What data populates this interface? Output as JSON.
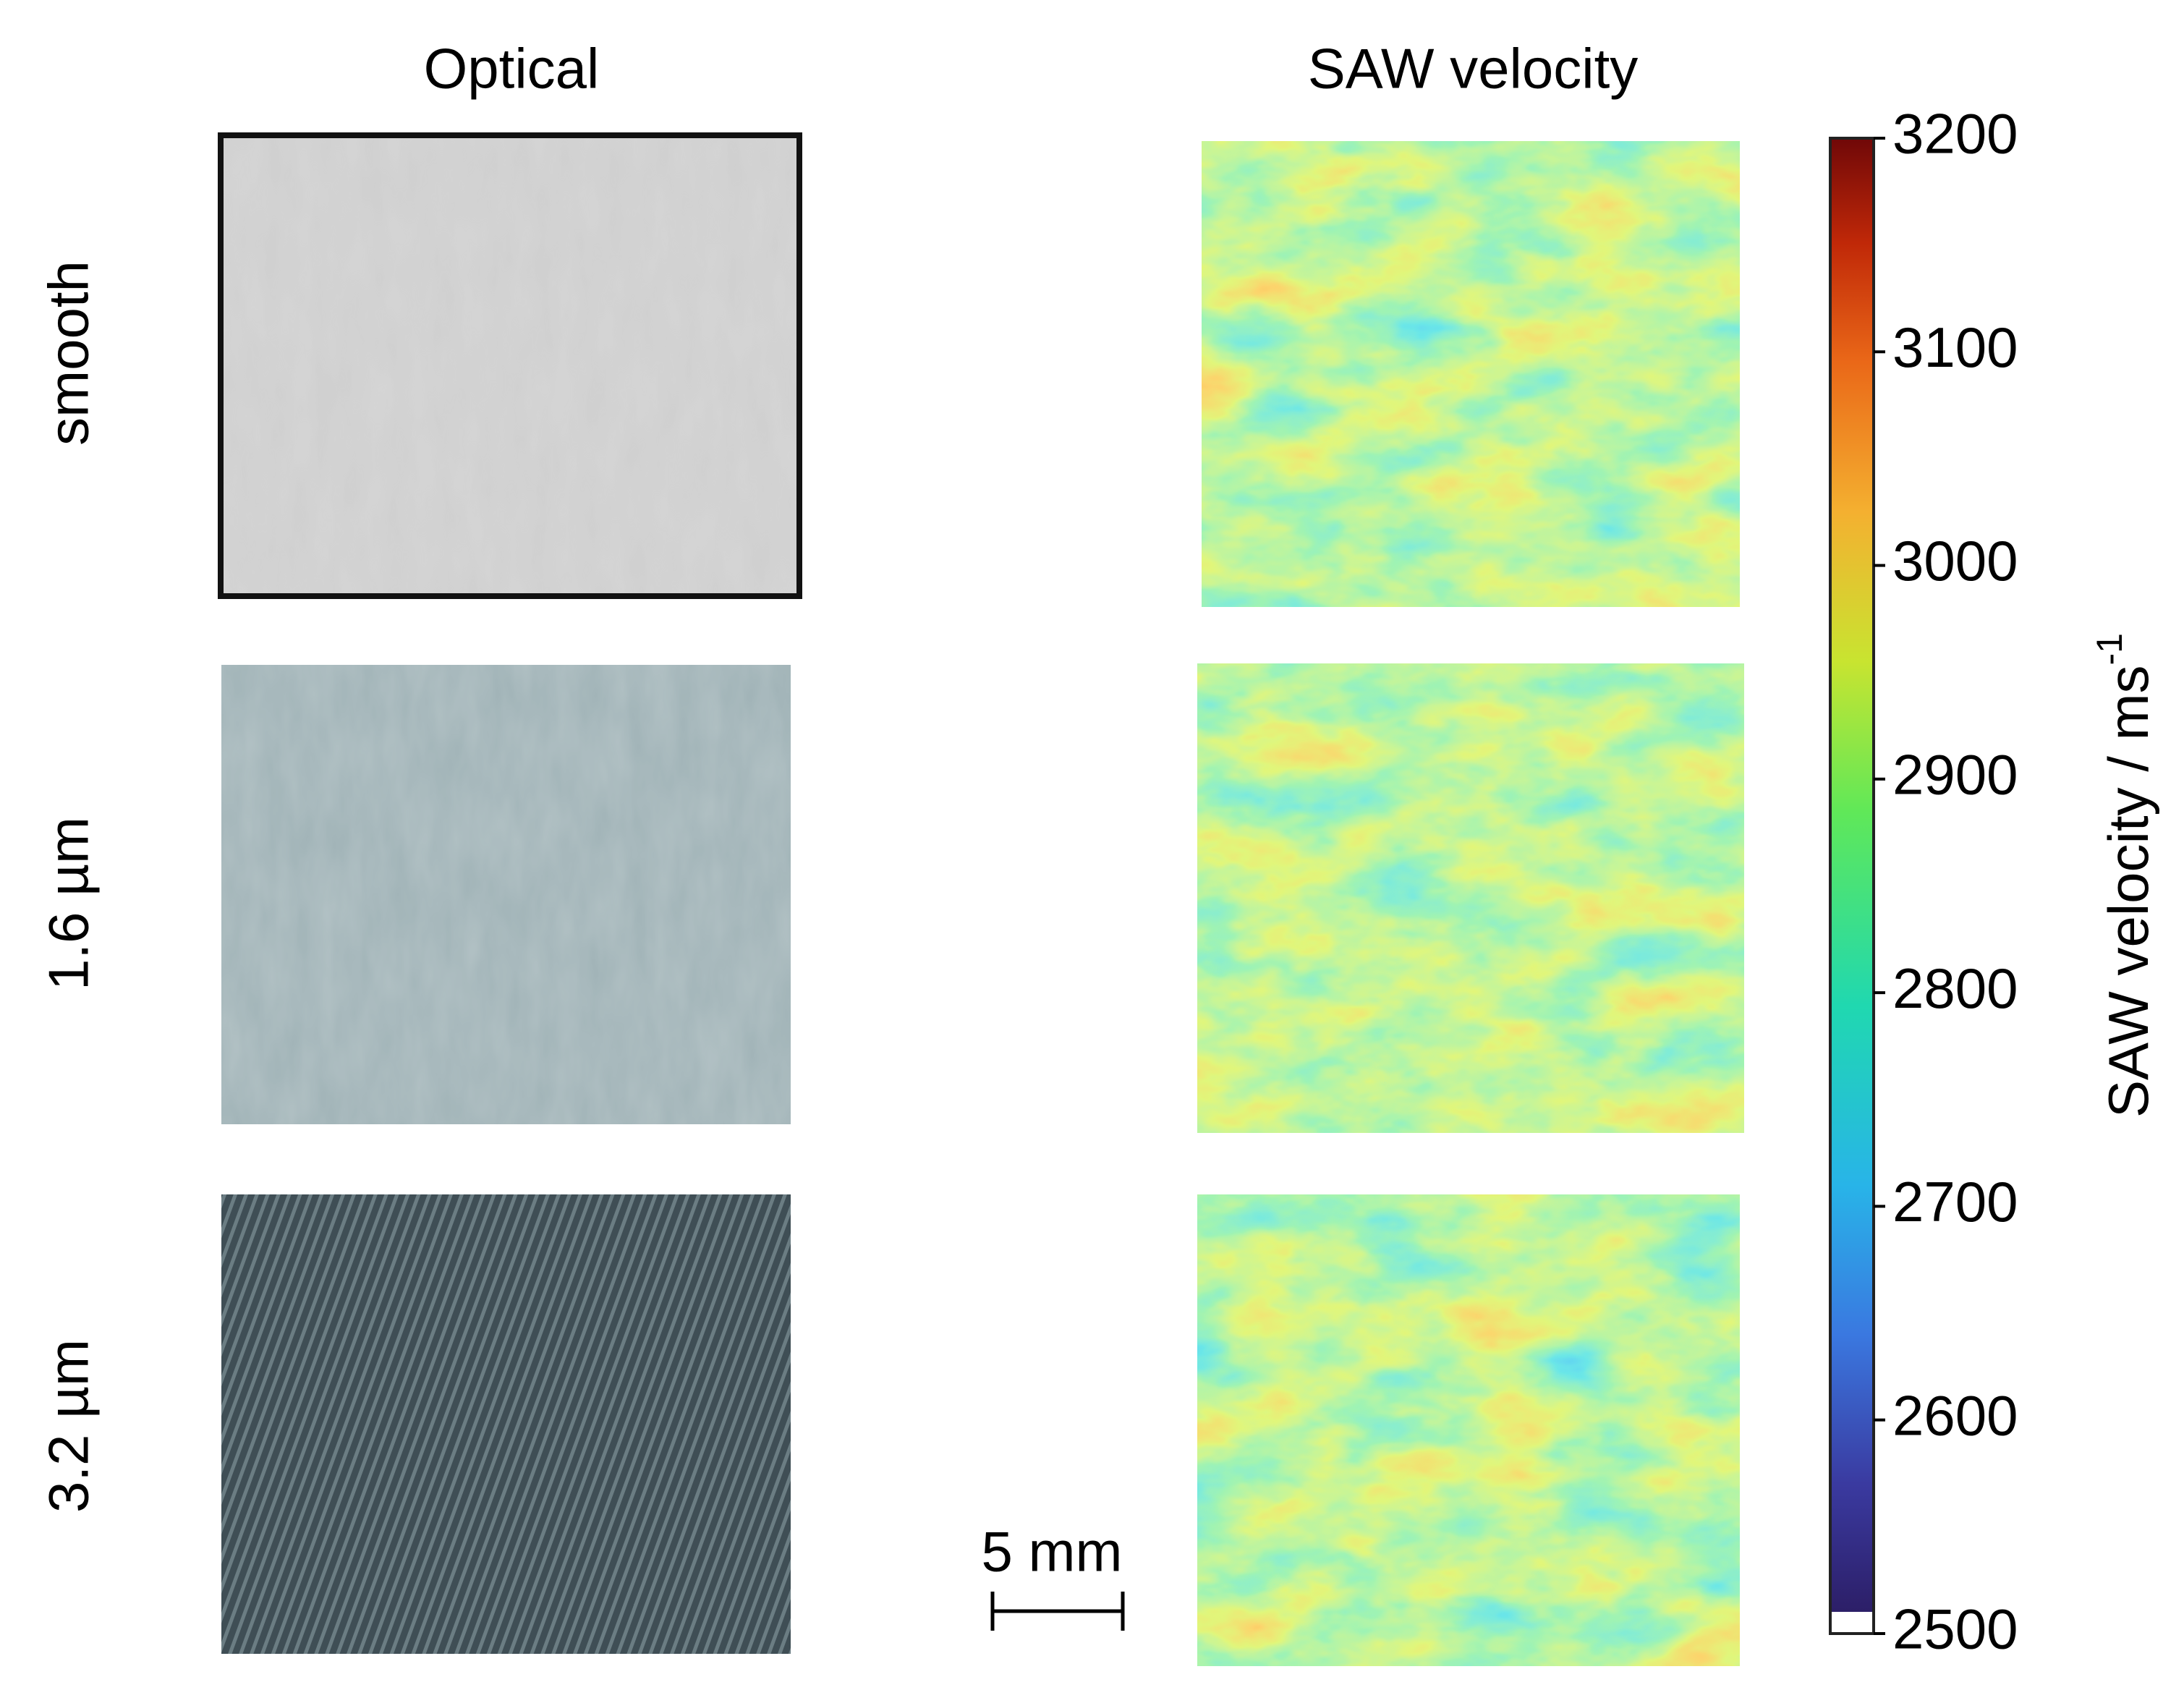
{
  "figure": {
    "column_titles": [
      "Optical",
      "SAW velocity"
    ],
    "row_labels": [
      "smooth",
      "1.6 µm",
      "3.2 µm"
    ],
    "scale_bar": "5 mm",
    "colorbar": {
      "label": "SAW velocity / ms",
      "label_exponent": "-1",
      "lim": [
        2500,
        3200
      ],
      "ticks": [
        2500,
        2600,
        2700,
        2800,
        2900,
        3000,
        3100,
        3200
      ]
    }
  }
}
